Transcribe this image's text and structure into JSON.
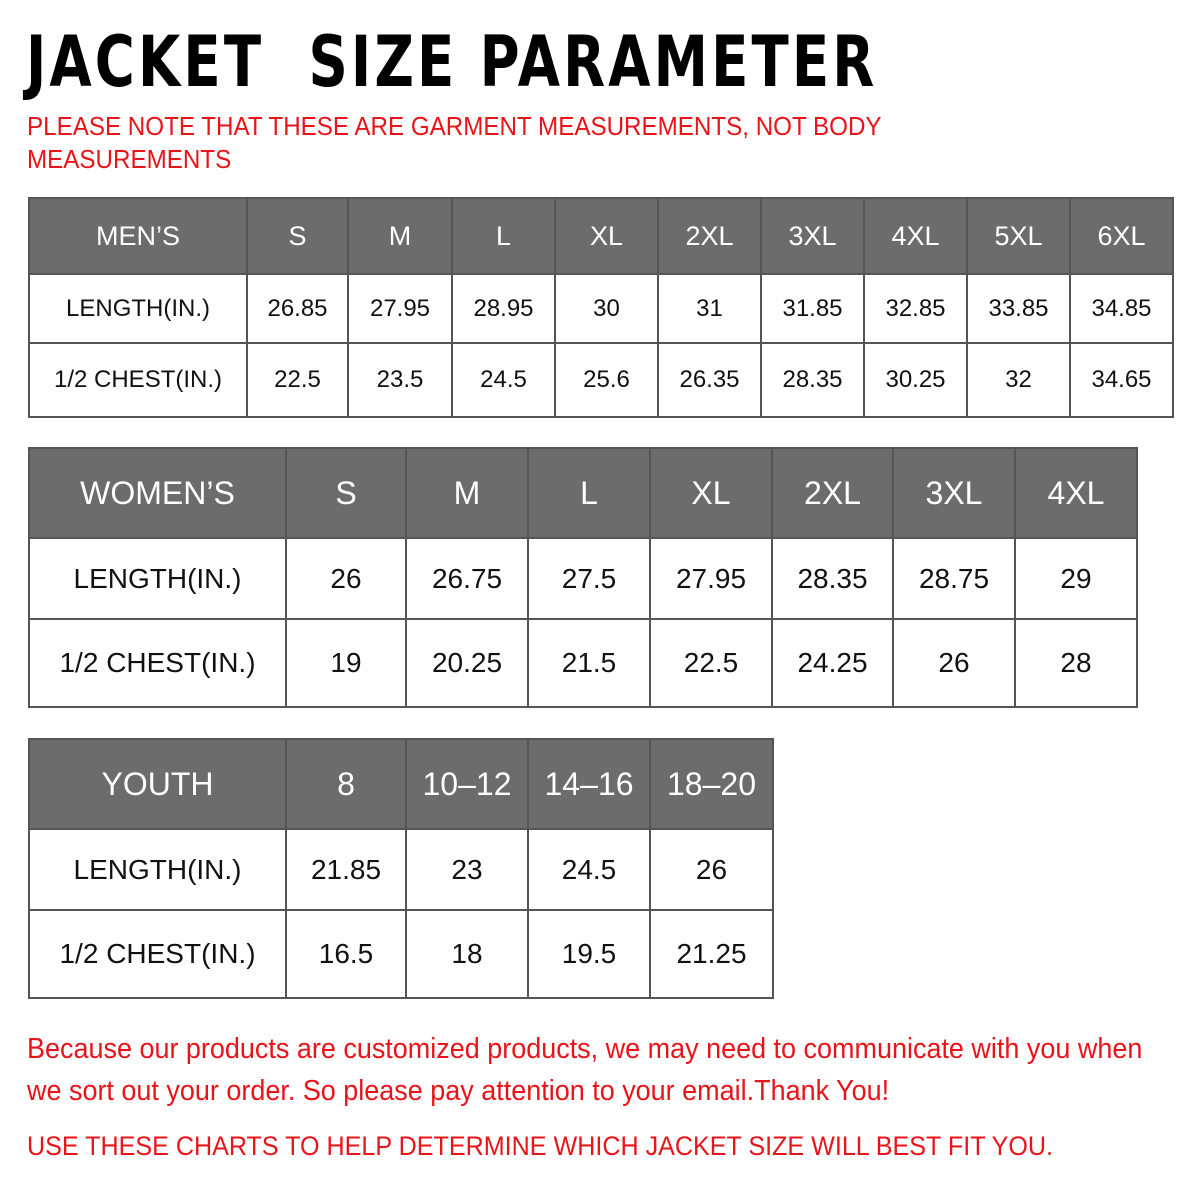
{
  "title": "JACKET  SIZE PARAMETER",
  "note": "PLEASE NOTE THAT THESE ARE GARMENT MEASUREMENTS, NOT BODY MEASUREMENTS",
  "colors": {
    "header_bg": "#6c6c6c",
    "accent_red": "#e8141a"
  },
  "mens": {
    "header": [
      "MEN’S",
      "S",
      "M",
      "L",
      "XL",
      "2XL",
      "3XL",
      "4XL",
      "5XL",
      "6XL"
    ],
    "rows": [
      [
        "LENGTH(IN.)",
        "26.85",
        "27.95",
        "28.95",
        "30",
        "31",
        "31.85",
        "32.85",
        "33.85",
        "34.85"
      ],
      [
        "1/2 CHEST(IN.)",
        "22.5",
        "23.5",
        "24.5",
        "25.6",
        "26.35",
        "28.35",
        "30.25",
        "32",
        "34.65"
      ]
    ]
  },
  "womens": {
    "header": [
      "WOMEN’S",
      "S",
      "M",
      "L",
      "XL",
      "2XL",
      "3XL",
      "4XL"
    ],
    "rows": [
      [
        "LENGTH(IN.)",
        "26",
        "26.75",
        "27.5",
        "27.95",
        "28.35",
        "28.75",
        "29"
      ],
      [
        "1/2 CHEST(IN.)",
        "19",
        "20.25",
        "21.5",
        "22.5",
        "24.25",
        "26",
        "28"
      ]
    ]
  },
  "youth": {
    "header": [
      "YOUTH",
      "8",
      "10–12",
      "14–16",
      "18–20"
    ],
    "rows": [
      [
        "LENGTH(IN.)",
        "21.85",
        "23",
        "24.5",
        "26"
      ],
      [
        "1/2 CHEST(IN.)",
        "16.5",
        "18",
        "19.5",
        "21.25"
      ]
    ]
  },
  "footer": {
    "message": "Because our products are customized products, we may need to communicate with you when we sort out your order. So please pay attention to your email.Thank You!",
    "advice": "USE THESE CHARTS TO HELP DETERMINE WHICH JACKET SIZE WILL BEST FIT YOU."
  }
}
